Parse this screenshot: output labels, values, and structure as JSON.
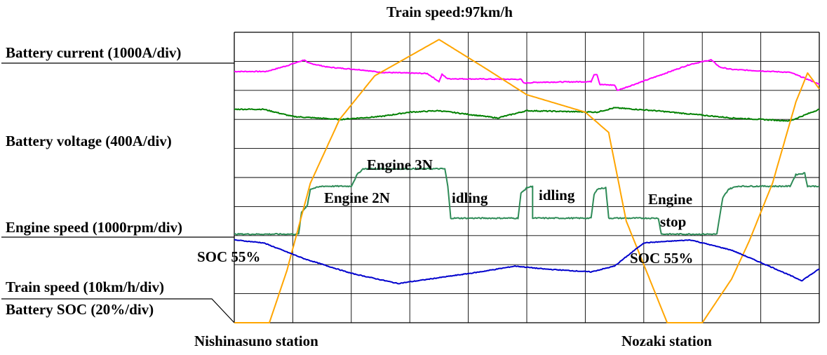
{
  "chart_data": {
    "type": "line",
    "title": "Train speed:97km/h",
    "grid": true,
    "x_divisions": 10,
    "y_divisions": 10,
    "channel_labels": [
      "Battery  current (1000A/div)",
      "Battery voltage (400A/div)",
      "Engine speed (1000rpm/div)",
      "Train speed (10km/h/div)",
      "Battery SOC (20%/div)"
    ],
    "x_labels": [
      "Nishinasuno station",
      "Nozaki station"
    ],
    "annotations": [
      "Engine 3N",
      "Engine 2N",
      "idling",
      "idling",
      "Engine",
      "stop",
      "SOC 55%",
      "SOC 55%"
    ],
    "series": [
      {
        "key": "battery_current",
        "color": "#ff00ff",
        "points": [
          [
            0,
            8.65
          ],
          [
            0.55,
            8.65
          ],
          [
            0.9,
            8.85
          ],
          [
            1.2,
            9.05
          ],
          [
            1.25,
            8.95
          ],
          [
            1.6,
            8.8
          ],
          [
            2.2,
            8.7
          ],
          [
            2.5,
            8.62
          ],
          [
            3.3,
            8.58
          ],
          [
            3.5,
            8.3
          ],
          [
            3.55,
            8.55
          ],
          [
            3.65,
            8.4
          ],
          [
            4.9,
            8.38
          ],
          [
            4.95,
            8.25
          ],
          [
            5.2,
            8.28
          ],
          [
            6.1,
            8.3
          ],
          [
            6.15,
            8.55
          ],
          [
            6.2,
            8.55
          ],
          [
            6.25,
            8.2
          ],
          [
            6.5,
            8.18
          ],
          [
            6.55,
            8.0
          ],
          [
            6.9,
            8.25
          ],
          [
            7.8,
            8.9
          ],
          [
            8.15,
            9.05
          ],
          [
            8.3,
            8.8
          ],
          [
            8.5,
            8.72
          ],
          [
            9.5,
            8.62
          ],
          [
            9.9,
            8.3
          ],
          [
            10,
            8.2
          ]
        ]
      },
      {
        "key": "battery_voltage",
        "color": "#008000",
        "points": [
          [
            0,
            7.35
          ],
          [
            0.5,
            7.35
          ],
          [
            1.0,
            7.1
          ],
          [
            1.8,
            7.0
          ],
          [
            2.5,
            7.1
          ],
          [
            3.0,
            7.25
          ],
          [
            3.5,
            7.3
          ],
          [
            4.5,
            7.05
          ],
          [
            4.8,
            7.2
          ],
          [
            5.0,
            7.3
          ],
          [
            6.2,
            7.25
          ],
          [
            6.5,
            7.4
          ],
          [
            7.2,
            7.3
          ],
          [
            8.5,
            7.05
          ],
          [
            9.5,
            6.95
          ],
          [
            10,
            7.35
          ]
        ]
      },
      {
        "key": "engine_speed",
        "color": "#2e8b57",
        "points": [
          [
            0,
            3.05
          ],
          [
            1.1,
            3.05
          ],
          [
            1.15,
            3.8
          ],
          [
            1.25,
            4.05
          ],
          [
            1.3,
            4.6
          ],
          [
            1.5,
            4.7
          ],
          [
            2.0,
            4.7
          ],
          [
            2.1,
            5.1
          ],
          [
            2.2,
            5.3
          ],
          [
            3.6,
            5.3
          ],
          [
            3.65,
            4.7
          ],
          [
            3.7,
            3.6
          ],
          [
            4.85,
            3.6
          ],
          [
            4.9,
            4.45
          ],
          [
            5.0,
            4.65
          ],
          [
            5.1,
            4.7
          ],
          [
            5.1,
            3.6
          ],
          [
            6.1,
            3.6
          ],
          [
            6.15,
            4.4
          ],
          [
            6.2,
            4.6
          ],
          [
            6.35,
            4.65
          ],
          [
            6.4,
            3.6
          ],
          [
            7.25,
            3.6
          ],
          [
            7.3,
            3.05
          ],
          [
            8.25,
            3.05
          ],
          [
            8.35,
            4.3
          ],
          [
            8.45,
            4.6
          ],
          [
            8.6,
            4.7
          ],
          [
            9.5,
            4.7
          ],
          [
            9.6,
            5.1
          ],
          [
            9.75,
            5.15
          ],
          [
            9.8,
            4.7
          ],
          [
            10,
            4.7
          ]
        ]
      },
      {
        "key": "train_speed",
        "color": "#ffa500",
        "points": [
          [
            0,
            0
          ],
          [
            0.6,
            0
          ],
          [
            0.9,
            1.8
          ],
          [
            1.3,
            4.8
          ],
          [
            1.8,
            7.0
          ],
          [
            2.4,
            8.5
          ],
          [
            3.5,
            9.75
          ],
          [
            4.3,
            8.75
          ],
          [
            5.0,
            7.85
          ],
          [
            6.0,
            7.25
          ],
          [
            6.4,
            6.55
          ],
          [
            6.7,
            3.5
          ],
          [
            7.1,
            1.5
          ],
          [
            7.4,
            0
          ],
          [
            8.0,
            0
          ],
          [
            8.5,
            1.5
          ],
          [
            8.8,
            2.8
          ],
          [
            9.2,
            4.8
          ],
          [
            9.6,
            7.6
          ],
          [
            9.8,
            8.6
          ],
          [
            10,
            8.05
          ]
        ]
      },
      {
        "key": "battery_soc",
        "color": "#0000cd",
        "points": [
          [
            0,
            2.85
          ],
          [
            0.5,
            2.75
          ],
          [
            1.2,
            2.2
          ],
          [
            2.0,
            1.7
          ],
          [
            2.8,
            1.35
          ],
          [
            3.5,
            1.55
          ],
          [
            4.2,
            1.75
          ],
          [
            4.8,
            1.95
          ],
          [
            5.3,
            1.85
          ],
          [
            6.1,
            1.75
          ],
          [
            6.5,
            1.95
          ],
          [
            7.0,
            2.75
          ],
          [
            7.8,
            2.85
          ],
          [
            8.5,
            2.5
          ],
          [
            9.2,
            1.9
          ],
          [
            9.7,
            1.45
          ],
          [
            10,
            1.85
          ]
        ]
      }
    ]
  }
}
